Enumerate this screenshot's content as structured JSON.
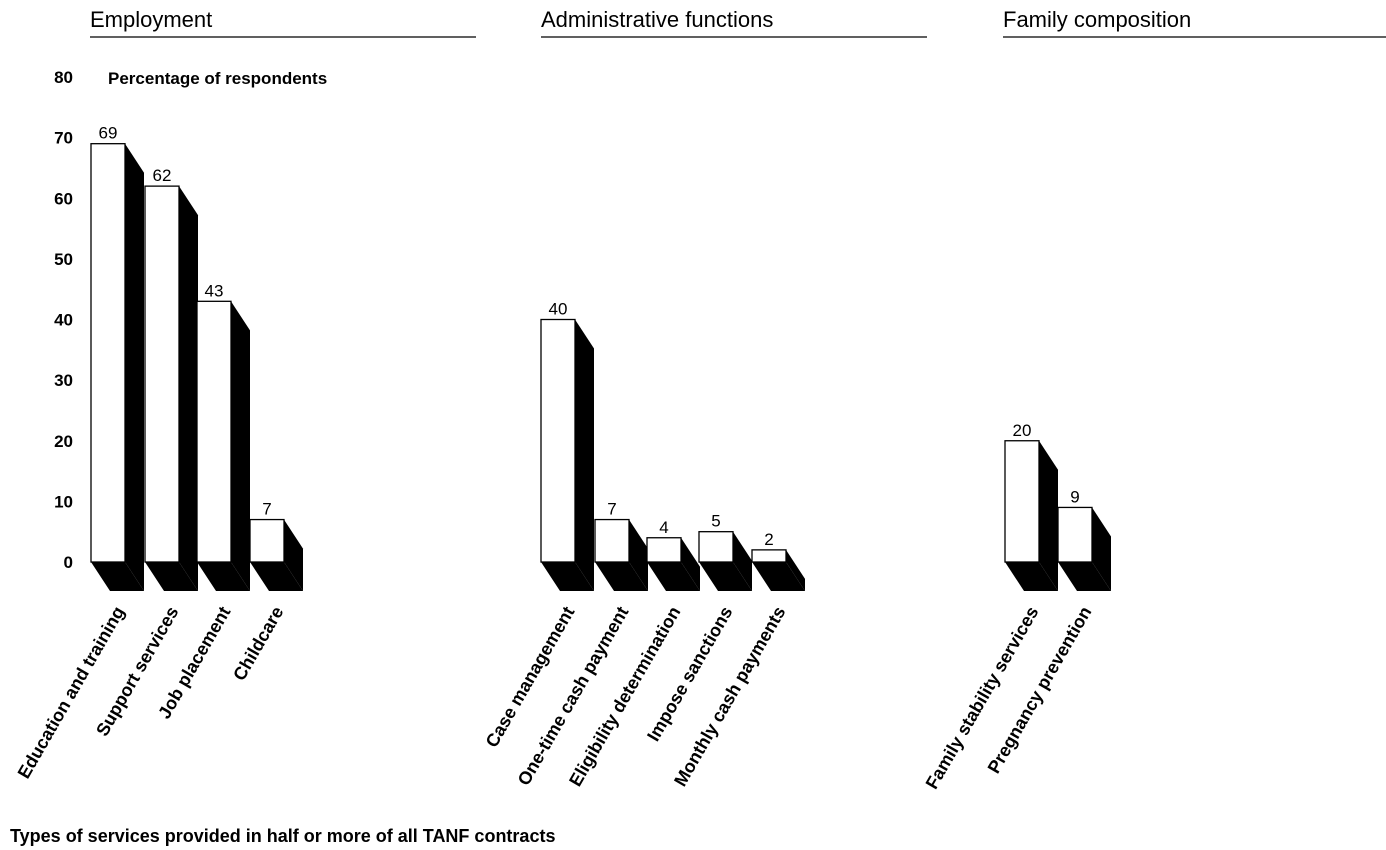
{
  "chart_data": {
    "type": "bar",
    "ylabel": "Percentage of respondents",
    "ylim": [
      0,
      80
    ],
    "yticks": [
      0,
      10,
      20,
      30,
      40,
      50,
      60,
      70,
      80
    ],
    "xlabel": "Types of services provided in half or more of all TANF contracts",
    "grid": false,
    "style": "3d-bars",
    "colors": {
      "bar_face": "#ffffff",
      "bar_side": "#000000",
      "outline": "#000000"
    },
    "groups": [
      {
        "name": "Employment",
        "categories": [
          "Education and training",
          "Support services",
          "Job placement",
          "Childcare"
        ],
        "values": [
          69,
          62,
          43,
          7
        ]
      },
      {
        "name": "Administrative functions",
        "categories": [
          "Case management",
          "One-time cash payment",
          "Eligibility determination",
          "Impose sanctions",
          "Monthly cash payments"
        ],
        "values": [
          40,
          7,
          4,
          5,
          2
        ]
      },
      {
        "name": "Family composition",
        "categories": [
          "Family stability services",
          "Pregnancy prevention"
        ],
        "values": [
          20,
          9
        ]
      }
    ]
  }
}
